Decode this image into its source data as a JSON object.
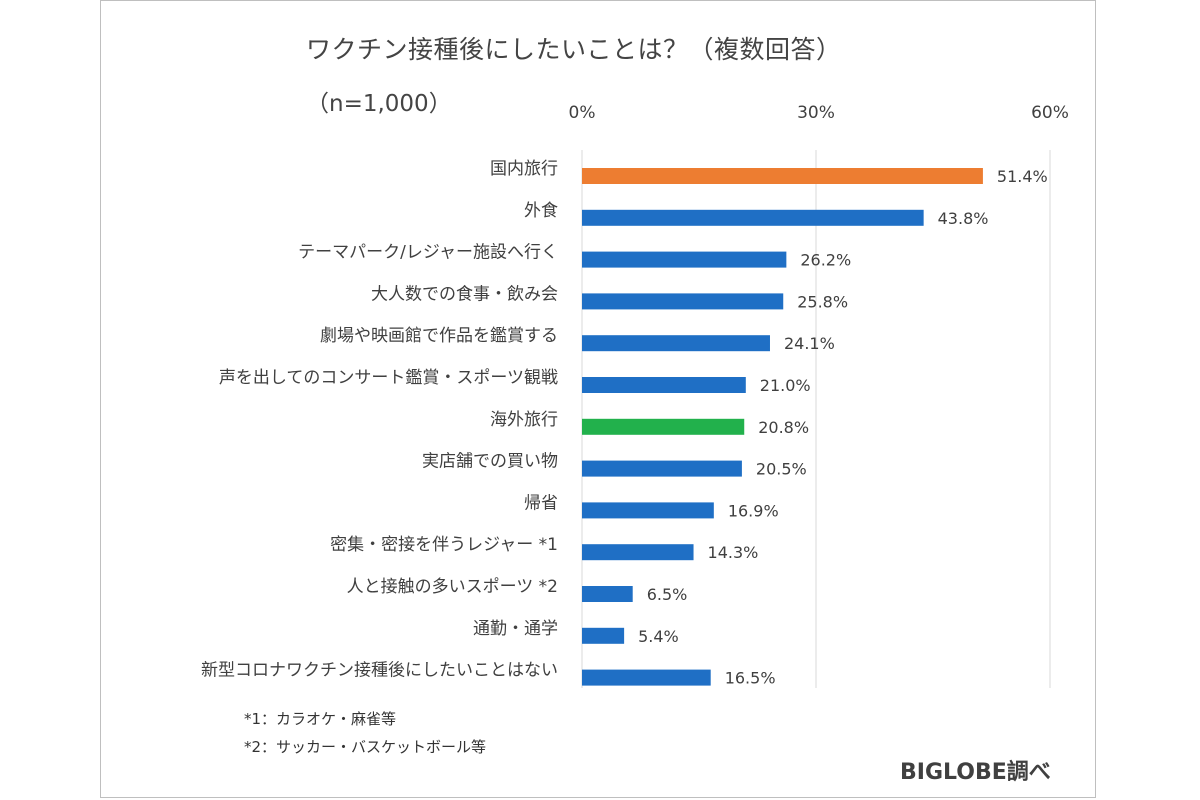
{
  "title": "ワクチン接種後にしたいことは？（複数回答）",
  "subtitle": "（n=1,000）",
  "notes": [
    "*1：カラオケ・麻雀等",
    "*2：サッカー・バスケットボール等"
  ],
  "source": "BIGLOBE調べ",
  "colors": {
    "default": "#1f6fc5",
    "highlight_top": "#ed7d31",
    "highlight_overseas": "#22b14c"
  },
  "chart_data": {
    "type": "bar",
    "orientation": "horizontal",
    "title": "ワクチン接種後にしたいことは？（複数回答）",
    "subtitle": "（n=1,000）",
    "xlim": [
      0,
      60
    ],
    "xticks": [
      "0%",
      "30%",
      "60%"
    ],
    "xtick_values": [
      0,
      30,
      60
    ],
    "grid": true,
    "categories": [
      "国内旅行",
      "外食",
      "テーマパーク/レジャー施設へ行く",
      "大人数での食事・飲み会",
      "劇場や映画館で作品を鑑賞する",
      "声を出してのコンサート鑑賞・スポーツ観戦",
      "海外旅行",
      "実店舗での買い物",
      "帰省",
      "密集・密接を伴うレジャー *1",
      "人と接触の多いスポーツ *2",
      "通勤・通学",
      "新型コロナワクチン接種後にしたいことはない"
    ],
    "values": [
      51.4,
      43.8,
      26.2,
      25.8,
      24.1,
      21.0,
      20.8,
      20.5,
      16.9,
      14.3,
      6.5,
      5.4,
      16.5
    ],
    "value_labels": [
      "51.4%",
      "43.8%",
      "26.2%",
      "25.8%",
      "24.1%",
      "21.0%",
      "20.8%",
      "20.5%",
      "16.9%",
      "14.3%",
      "6.5%",
      "5.4%",
      "16.5%"
    ],
    "bar_colors": [
      "highlight_top",
      "default",
      "default",
      "default",
      "default",
      "default",
      "highlight_overseas",
      "default",
      "default",
      "default",
      "default",
      "default",
      "default"
    ]
  }
}
